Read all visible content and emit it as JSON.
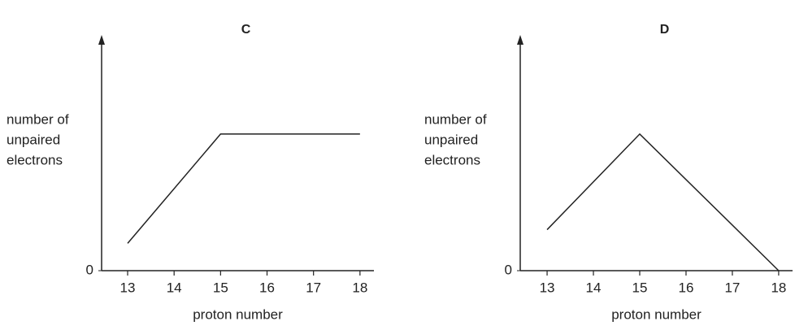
{
  "chart_data": [
    {
      "type": "line",
      "title": "C",
      "ylabel": [
        "number of",
        "unpaired",
        "electrons"
      ],
      "xlabel": "proton number",
      "x": [
        13,
        15,
        18
      ],
      "values": [
        0.6,
        3,
        3
      ],
      "color": "#222222",
      "xlim": [
        12.44,
        18.3
      ],
      "xticks": [
        13,
        14,
        15,
        16,
        17,
        18
      ],
      "ylim": [
        0,
        5.14
      ],
      "yticks": [
        0
      ]
    },
    {
      "type": "line",
      "title": "D",
      "ylabel": [
        "number of",
        "unpaired",
        "electrons"
      ],
      "xlabel": "proton number",
      "x": [
        13,
        15,
        18
      ],
      "values": [
        0.9,
        3,
        0
      ],
      "color": "#222222",
      "xlim": [
        12.42,
        18.3
      ],
      "xticks": [
        13,
        14,
        15,
        16,
        17,
        18
      ],
      "ylim": [
        0,
        5.14
      ],
      "yticks": [
        0
      ]
    }
  ]
}
